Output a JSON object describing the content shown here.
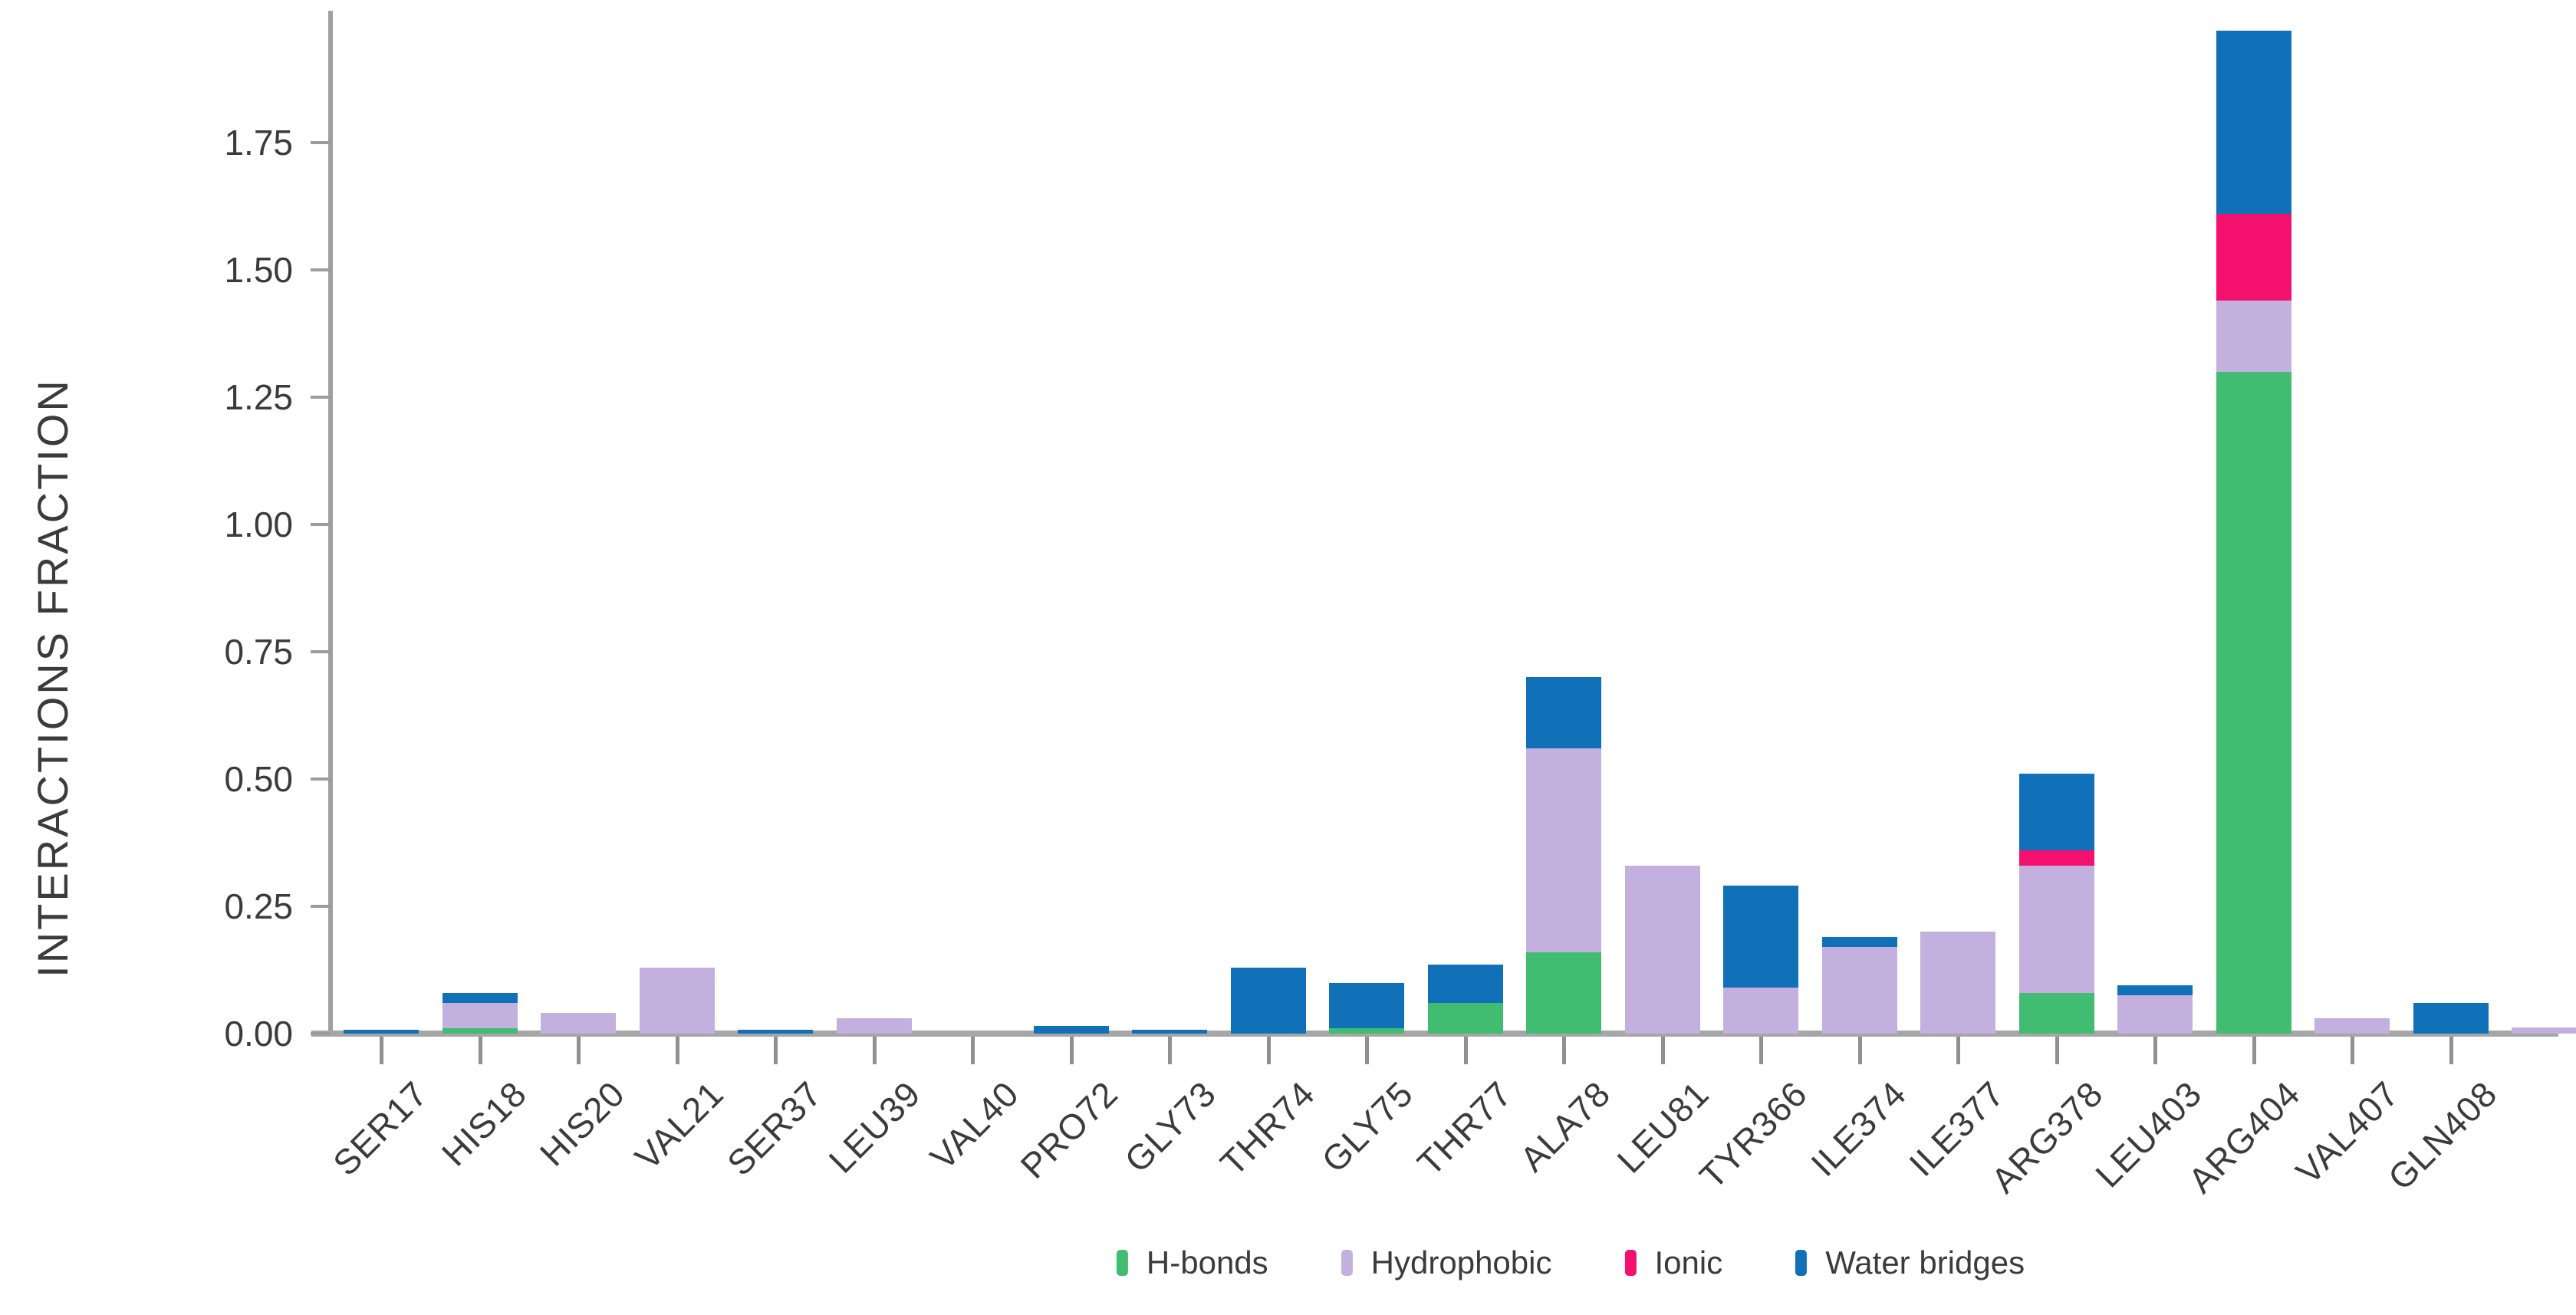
{
  "chart_data": {
    "type": "bar",
    "stacked": true,
    "title": "",
    "xlabel": "",
    "ylabel": "INTERACTIONS FRACTION",
    "ylim": [
      0,
      2.0
    ],
    "grid": false,
    "legend_position": "bottom",
    "ytick_labels": [
      "0.00",
      "0.25",
      "0.50",
      "0.75",
      "1.00",
      "1.25",
      "1.50",
      "1.75"
    ],
    "categories": [
      "SER17",
      "HIS18",
      "HIS20",
      "VAL21",
      "SER37",
      "LEU39",
      "VAL40",
      "PRO72",
      "GLY73",
      "THR74",
      "GLY75",
      "THR77",
      "ALA78",
      "LEU81",
      "TYR366",
      "ILE374",
      "ILE377",
      "ARG378",
      "LEU403",
      "ARG404",
      "VAL407",
      "GLN408"
    ],
    "series": [
      {
        "name": "H-bonds",
        "color": "#41bd72",
        "values": [
          0,
          0.01,
          0,
          0,
          0,
          0,
          0,
          0,
          0,
          0,
          0.01,
          0.06,
          0.16,
          0,
          0,
          0,
          0,
          0.08,
          0,
          1.3,
          0,
          0
        ]
      },
      {
        "name": "Hydrophobic",
        "color": "#c4b0de",
        "values": [
          0,
          0.05,
          0.04,
          0.13,
          0,
          0.03,
          0,
          0,
          0,
          0,
          0,
          0,
          0.4,
          0.33,
          0.09,
          0.17,
          0.2,
          0.25,
          0.075,
          0.14,
          0.03,
          0
        ]
      },
      {
        "name": "Ionic",
        "color": "#f3106f",
        "values": [
          0,
          0,
          0,
          0,
          0,
          0,
          0,
          0,
          0,
          0,
          0,
          0,
          0,
          0,
          0,
          0,
          0,
          0.03,
          0,
          0.17,
          0,
          0
        ]
      },
      {
        "name": "Water bridges",
        "color": "#1071b9",
        "values": [
          0.008,
          0.02,
          0,
          0,
          0.008,
          0,
          0,
          0.015,
          0.008,
          0.13,
          0.09,
          0.075,
          0.14,
          0,
          0.2,
          0.02,
          0,
          0.15,
          0.02,
          0.36,
          0,
          0.06
        ]
      }
    ],
    "clipped_edge_bar": {
      "series": "Hydrophobic",
      "value": 0.012
    }
  },
  "axis": {
    "line_color": "#a0a0a0",
    "text_color": "#3b3b3b"
  }
}
